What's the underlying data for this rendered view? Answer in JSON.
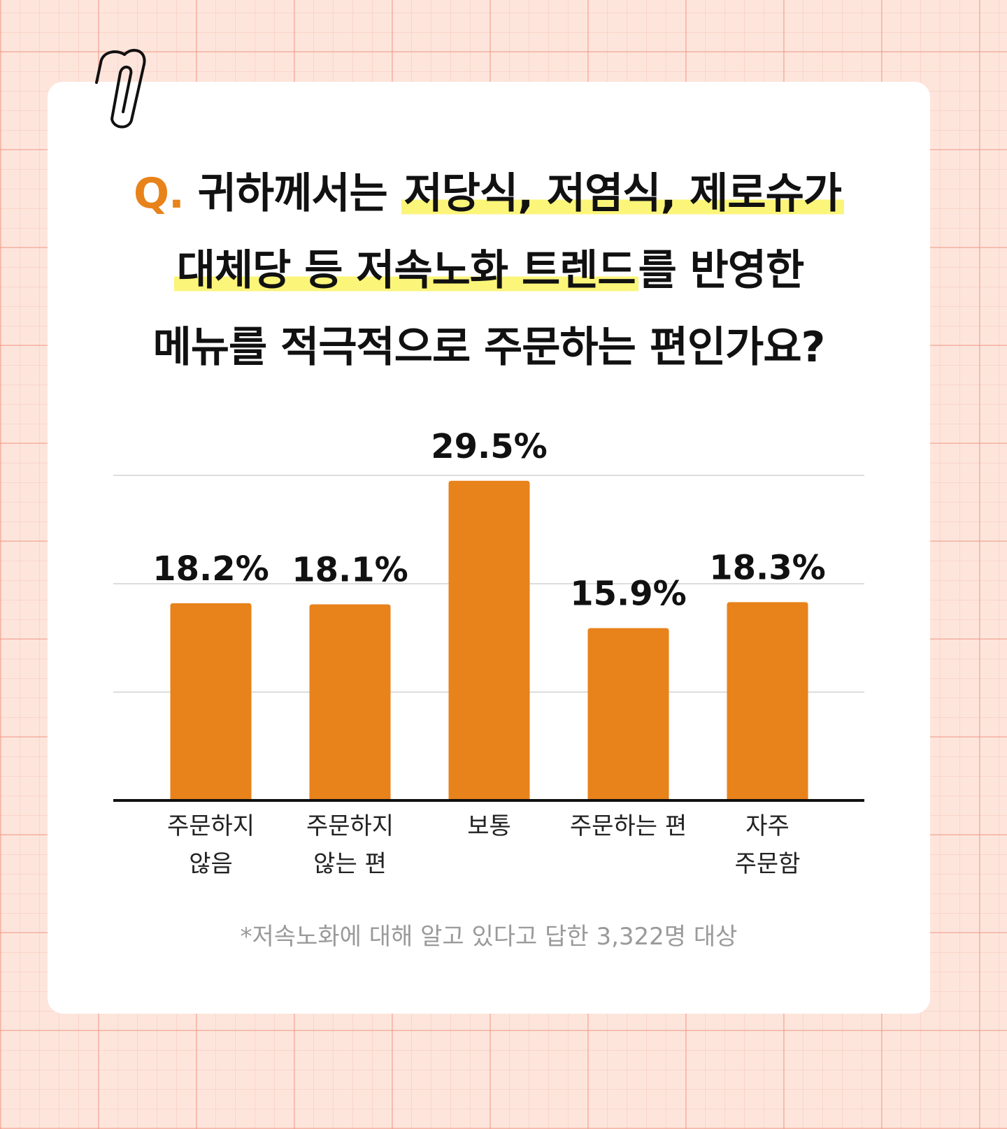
{
  "chart_data": {
    "type": "bar",
    "title": {
      "marker": "Q.",
      "lines": [
        [
          "귀하께서는",
          "저당식, 저염식, 제로슈가"
        ],
        [
          "대체당 등 저속노화 트렌드",
          "를 반영한"
        ],
        [
          "메뉴를 적극적으로 주문하는 편인가요?"
        ]
      ]
    },
    "categories": [
      "주문하지\n않음",
      "주문하지\n않는 편",
      "보통",
      "주문하는 편",
      "자주\n주문함"
    ],
    "values": [
      18.2,
      18.1,
      29.5,
      15.9,
      18.3
    ],
    "value_labels": [
      "18.2%",
      "18.1%",
      "29.5%",
      "15.9%",
      "18.3%"
    ],
    "color": "#e8821a",
    "ylim": [
      0,
      30
    ],
    "yticks": [
      0,
      10,
      20,
      30
    ],
    "grid": true,
    "footnote": "*저속노화에 대해 알고 있다고 답한 3,322명 대상"
  }
}
